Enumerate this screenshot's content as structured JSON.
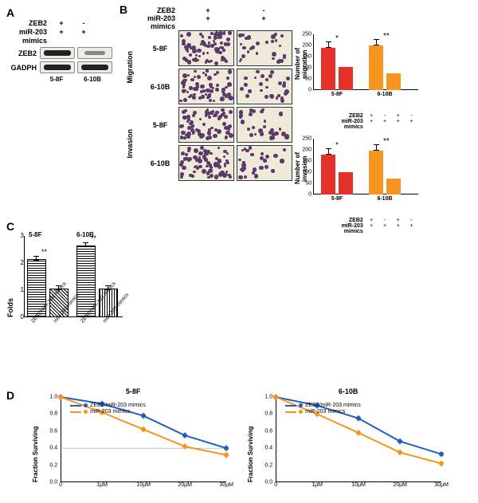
{
  "colors": {
    "red": "#e4322b",
    "orange": "#f7941e",
    "blue": "#1f5fbf",
    "blot_bg": "#f0ece4",
    "micro_bg": "#efe9d9",
    "cell_stain": "#5a3a6a"
  },
  "panelA": {
    "letter": "A",
    "rows": [
      "ZEB2",
      "miR-203",
      "mimics"
    ],
    "signs_58F": [
      "+",
      "-",
      "+",
      "+"
    ],
    "signs_610B": [
      "+",
      "-",
      "+",
      "+"
    ],
    "blot_labels": [
      "ZEB2",
      "GADPH"
    ],
    "sublabels": [
      "5-8F",
      "6-10B"
    ]
  },
  "panelB": {
    "letter": "B",
    "hdr_labels": [
      "ZEB2",
      "miR-203",
      "mimics"
    ],
    "hdr_signs": [
      "+",
      "-",
      "+",
      "+"
    ],
    "vlabels": [
      "Migration",
      "Invasion"
    ],
    "sublabels": [
      "5-8F",
      "6-10B"
    ],
    "bar_migration": {
      "ylabel": "Number of migration",
      "ymax": 250,
      "ytick": 50,
      "groups": [
        "5-8F",
        "6-10B"
      ],
      "values": [
        [
          190,
          105
        ],
        [
          200,
          75
        ]
      ],
      "colors": [
        "#e4322b",
        "#f7941e"
      ],
      "sig": [
        "*",
        "**"
      ]
    },
    "bar_invasion": {
      "ylabel": "Number of invasion",
      "ymax": 250,
      "ytick": 50,
      "groups": [
        "5-8F",
        "6-10B"
      ],
      "values": [
        [
          180,
          100
        ],
        [
          195,
          70
        ]
      ],
      "colors": [
        "#e4322b",
        "#f7941e"
      ],
      "sig": [
        "*",
        "**"
      ]
    },
    "sub_rows": [
      "ZEB2",
      "miR-203",
      "mimics"
    ],
    "sub_signs": [
      "+",
      "-",
      "+",
      "-",
      "+",
      "+",
      "+",
      "+"
    ]
  },
  "panelC": {
    "letter": "C",
    "ylabel": "Folds",
    "ymax": 3,
    "ytick": 1,
    "titles": [
      "5-8F",
      "6-10B"
    ],
    "bars": [
      {
        "label": "ZEB2/miR-203 mimics",
        "value": 2.1,
        "pattern": "hatch-d"
      },
      {
        "label": "miR-203 mimics",
        "value": 1.0,
        "pattern": "hatch-c"
      },
      {
        "label": "ZEB2/miR-203 mimics",
        "value": 2.6,
        "pattern": "hatch-d"
      },
      {
        "label": "miR-203 mimics",
        "value": 1.0,
        "pattern": "hatch-v"
      }
    ],
    "sig": [
      "**",
      "**"
    ]
  },
  "panelD": {
    "letter": "D",
    "charts": [
      {
        "title": "5-8F",
        "ylabel": "Fraction Surviving",
        "ymax": 1.0,
        "ytick": 0.2,
        "xticks": [
          "0",
          "1μM",
          "10μM",
          "20μM",
          "30μM"
        ],
        "series": [
          {
            "name": "ZEB2/miR-203 mimics",
            "color": "#1f5fbf",
            "values": [
              1.0,
              0.92,
              0.78,
              0.55,
              0.4
            ]
          },
          {
            "name": "miR-203 mimics",
            "color": "#f7941e",
            "values": [
              1.0,
              0.82,
              0.62,
              0.42,
              0.32
            ]
          }
        ],
        "hline": 0.4
      },
      {
        "title": "6-10B",
        "ylabel": "Fraction Surviving",
        "ymax": 1.0,
        "ytick": 0.2,
        "xticks": [
          "0",
          "1μM",
          "10μM",
          "20μM",
          "30μM"
        ],
        "series": [
          {
            "name": "ZEB2/miR-203 mimics",
            "color": "#1f5fbf",
            "values": [
              1.0,
              0.9,
              0.75,
              0.48,
              0.33
            ]
          },
          {
            "name": "miR-203 mimics",
            "color": "#f7941e",
            "values": [
              1.0,
              0.8,
              0.58,
              0.35,
              0.22
            ]
          }
        ]
      }
    ]
  }
}
